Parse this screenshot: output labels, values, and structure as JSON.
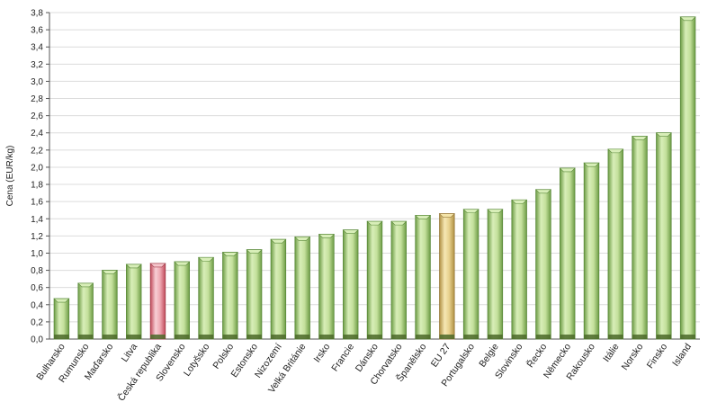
{
  "chart_data": {
    "type": "bar",
    "title": "",
    "xlabel": "",
    "ylabel": "Cena (EUR/kg)",
    "ylim": [
      0,
      3.8
    ],
    "ytick_step": 0.2,
    "grid": true,
    "categories": [
      "Bulharsko",
      "Rumunsko",
      "Maďarsko",
      "Litva",
      "Česká republika",
      "Slovensko",
      "Lotyšsko",
      "Polsko",
      "Estonsko",
      "Nizozemí",
      "Velká Británie",
      "Irsko",
      "Francie",
      "Dánsko",
      "Chorvatsko",
      "Španělsko",
      "EU 27",
      "Portugalsko",
      "Belgie",
      "Slovinsko",
      "Řecko",
      "Německo",
      "Rakousko",
      "Itálie",
      "Norsko",
      "Finsko",
      "Island"
    ],
    "values": [
      0.47,
      0.65,
      0.8,
      0.87,
      0.88,
      0.9,
      0.95,
      1.01,
      1.04,
      1.16,
      1.19,
      1.22,
      1.27,
      1.37,
      1.37,
      1.44,
      1.46,
      1.51,
      1.51,
      1.62,
      1.74,
      1.99,
      2.05,
      2.21,
      2.36,
      2.4,
      3.75
    ],
    "highlight": {
      "Česká republika": "pink",
      "EU 27": "gold"
    },
    "colors": {
      "default_light": "#d8eeb8",
      "default_dark": "#78a850",
      "default_edge": "#5a8a3a",
      "pink_light": "#f6c6cc",
      "pink_dark": "#cc5866",
      "pink_edge": "#a03a48",
      "gold_light": "#f4e4a8",
      "gold_dark": "#bc9c50",
      "gold_edge": "#97793a",
      "base": "#4c6a2a"
    }
  }
}
